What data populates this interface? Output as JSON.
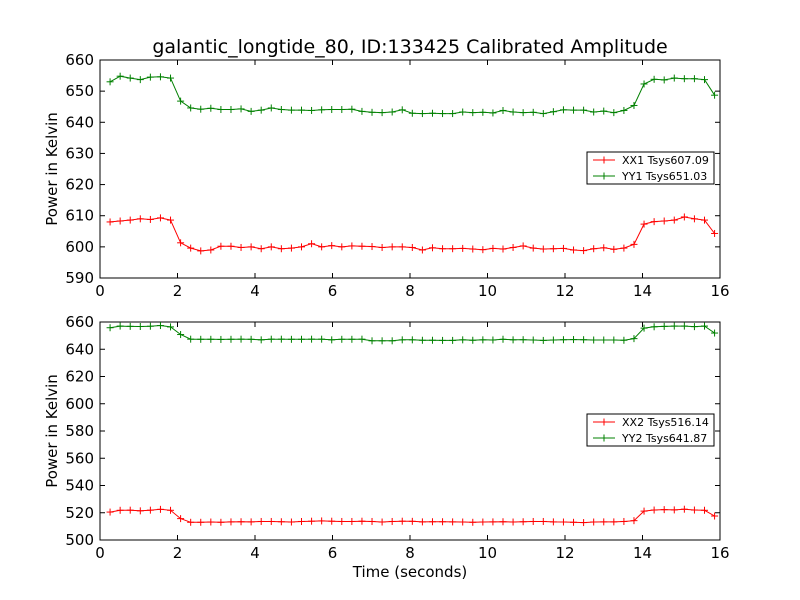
{
  "chart_data": [
    {
      "type": "line",
      "title": "galantic_longtide_80, ID:133425 Calibrated Amplitude",
      "xlabel": "",
      "ylabel": "Power in Kelvin",
      "xlim": [
        0,
        16
      ],
      "ylim": [
        590,
        660
      ],
      "xticks": [
        0,
        2,
        4,
        6,
        8,
        10,
        12,
        14,
        16
      ],
      "yticks": [
        590,
        600,
        610,
        620,
        630,
        640,
        650,
        660
      ],
      "grid": false,
      "legend": "right",
      "x": [
        0.26,
        0.52,
        0.78,
        1.04,
        1.3,
        1.56,
        1.82,
        2.08,
        2.34,
        2.6,
        2.86,
        3.12,
        3.38,
        3.64,
        3.9,
        4.16,
        4.42,
        4.68,
        4.94,
        5.2,
        5.46,
        5.72,
        5.98,
        6.24,
        6.5,
        6.76,
        7.02,
        7.28,
        7.54,
        7.8,
        8.06,
        8.32,
        8.58,
        8.84,
        9.1,
        9.36,
        9.62,
        9.88,
        10.14,
        10.4,
        10.66,
        10.92,
        11.18,
        11.44,
        11.7,
        11.96,
        12.22,
        12.48,
        12.74,
        13.0,
        13.26,
        13.52,
        13.78,
        14.04,
        14.3,
        14.56,
        14.82,
        15.08,
        15.34,
        15.6,
        15.86
      ],
      "series": [
        {
          "name": "XX1 Tsys607.09",
          "color": "#ff0000",
          "values": [
            608.0,
            608.3,
            608.6,
            609.0,
            608.8,
            609.3,
            608.6,
            601.3,
            599.6,
            598.7,
            599.0,
            600.2,
            600.2,
            599.8,
            600.0,
            599.4,
            600.0,
            599.4,
            599.6,
            600.0,
            601.0,
            600.0,
            600.4,
            600.0,
            600.3,
            600.2,
            600.1,
            599.8,
            600.0,
            600.0,
            599.8,
            599.0,
            599.7,
            599.4,
            599.4,
            599.5,
            599.3,
            599.1,
            599.5,
            599.3,
            599.8,
            600.3,
            599.6,
            599.3,
            599.4,
            599.5,
            599.0,
            598.8,
            599.4,
            599.7,
            599.2,
            599.6,
            600.8,
            607.3,
            608.1,
            608.3,
            608.6,
            609.6,
            609.0,
            608.6,
            604.3
          ]
        },
        {
          "name": "YY1 Tsys651.03",
          "color": "#008000",
          "values": [
            653.0,
            654.8,
            654.2,
            653.7,
            654.5,
            654.6,
            654.2,
            646.8,
            644.6,
            644.2,
            644.5,
            644.1,
            644.1,
            644.3,
            643.5,
            643.9,
            644.6,
            644.1,
            643.9,
            643.9,
            643.8,
            644.0,
            644.1,
            644.1,
            644.2,
            643.5,
            643.2,
            643.1,
            643.3,
            644.0,
            642.9,
            642.8,
            642.9,
            642.8,
            642.8,
            643.3,
            643.1,
            643.2,
            643.0,
            643.8,
            643.3,
            643.1,
            643.2,
            642.8,
            643.4,
            644.0,
            643.9,
            643.9,
            643.3,
            643.6,
            643.1,
            643.8,
            645.4,
            652.3,
            653.8,
            653.6,
            654.2,
            654.0,
            654.0,
            653.7,
            648.7
          ]
        }
      ]
    },
    {
      "type": "line",
      "title": "",
      "xlabel": "Time (seconds)",
      "ylabel": "Power in Kelvin",
      "xlim": [
        0,
        16
      ],
      "ylim": [
        500,
        660
      ],
      "xticks": [
        0,
        2,
        4,
        6,
        8,
        10,
        12,
        14,
        16
      ],
      "yticks": [
        500,
        520,
        540,
        560,
        580,
        600,
        620,
        640,
        660
      ],
      "grid": false,
      "legend": "right",
      "x": [
        0.26,
        0.52,
        0.78,
        1.04,
        1.3,
        1.56,
        1.82,
        2.08,
        2.34,
        2.6,
        2.86,
        3.12,
        3.38,
        3.64,
        3.9,
        4.16,
        4.42,
        4.68,
        4.94,
        5.2,
        5.46,
        5.72,
        5.98,
        6.24,
        6.5,
        6.76,
        7.02,
        7.28,
        7.54,
        7.8,
        8.06,
        8.32,
        8.58,
        8.84,
        9.1,
        9.36,
        9.62,
        9.88,
        10.14,
        10.4,
        10.66,
        10.92,
        11.18,
        11.44,
        11.7,
        11.96,
        12.22,
        12.48,
        12.74,
        13.0,
        13.26,
        13.52,
        13.78,
        14.04,
        14.3,
        14.56,
        14.82,
        15.08,
        15.34,
        15.6,
        15.86
      ],
      "series": [
        {
          "name": "XX2 Tsys516.14",
          "color": "#ff0000",
          "values": [
            520.5,
            521.8,
            521.9,
            521.4,
            521.9,
            522.5,
            521.8,
            515.7,
            513.0,
            513.0,
            513.2,
            513.0,
            513.3,
            513.4,
            513.3,
            513.6,
            513.6,
            513.4,
            513.2,
            513.6,
            513.8,
            514.0,
            513.8,
            513.6,
            513.6,
            513.8,
            513.6,
            513.2,
            513.6,
            513.8,
            513.7,
            513.3,
            513.4,
            513.4,
            513.3,
            513.2,
            513.0,
            513.2,
            513.3,
            513.4,
            513.2,
            513.4,
            513.6,
            513.6,
            513.3,
            513.2,
            513.0,
            512.8,
            513.2,
            513.3,
            513.3,
            513.6,
            514.2,
            521.2,
            522.0,
            522.3,
            522.1,
            522.6,
            522.0,
            521.8,
            517.6
          ]
        },
        {
          "name": "YY2 Tsys641.87",
          "color": "#008000",
          "values": [
            655.8,
            657.0,
            656.8,
            656.7,
            656.9,
            657.4,
            656.4,
            650.8,
            647.4,
            647.3,
            647.3,
            647.2,
            647.3,
            647.4,
            647.3,
            646.9,
            647.4,
            647.4,
            647.3,
            647.3,
            647.4,
            647.4,
            646.9,
            647.3,
            647.3,
            647.4,
            646.2,
            646.2,
            646.2,
            646.9,
            646.9,
            646.6,
            646.6,
            646.5,
            646.5,
            646.9,
            646.6,
            646.9,
            646.8,
            647.3,
            646.9,
            647.0,
            646.8,
            646.5,
            646.8,
            647.0,
            647.1,
            647.0,
            646.8,
            646.8,
            646.8,
            646.6,
            647.8,
            655.5,
            656.5,
            656.8,
            657.0,
            657.0,
            656.6,
            657.0,
            651.9
          ]
        }
      ]
    }
  ]
}
